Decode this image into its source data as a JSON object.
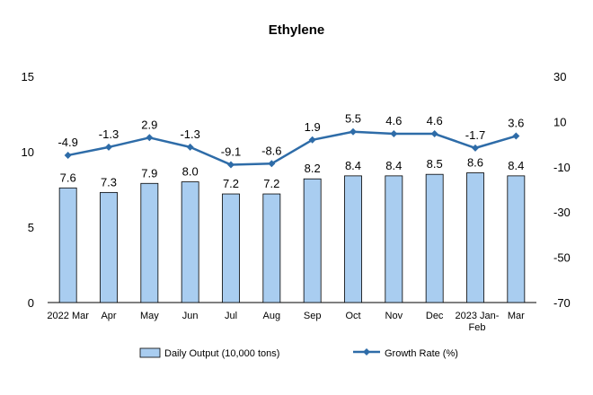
{
  "chart_data": {
    "type": "bar",
    "title": "Ethylene",
    "categories": [
      "2022 Mar",
      "Apr",
      "May",
      "Jun",
      "Jul",
      "Aug",
      "Sep",
      "Oct",
      "Nov",
      "Dec",
      "2023 Jan-Feb",
      "Mar"
    ],
    "series": [
      {
        "name": "Daily Output (10,000 tons)",
        "type": "bar",
        "axis": "left",
        "color": "#a9cdf0",
        "values": [
          7.6,
          7.3,
          7.9,
          8.0,
          7.2,
          7.2,
          8.2,
          8.4,
          8.4,
          8.5,
          8.6,
          8.4
        ]
      },
      {
        "name": "Growth Rate (%)",
        "type": "line",
        "axis": "right",
        "color": "#2e6ca8",
        "values": [
          -4.9,
          -1.3,
          2.9,
          -1.3,
          -9.1,
          -8.6,
          1.9,
          5.5,
          4.6,
          4.6,
          -1.7,
          3.6
        ]
      }
    ],
    "y_left": {
      "min": 0,
      "max": 15,
      "ticks": [
        0,
        5,
        10,
        15
      ]
    },
    "y_right": {
      "min": -70,
      "max": 30,
      "ticks": [
        -70,
        -50,
        -30,
        -10,
        10,
        30
      ]
    },
    "legend_position": "bottom",
    "grid": false
  }
}
